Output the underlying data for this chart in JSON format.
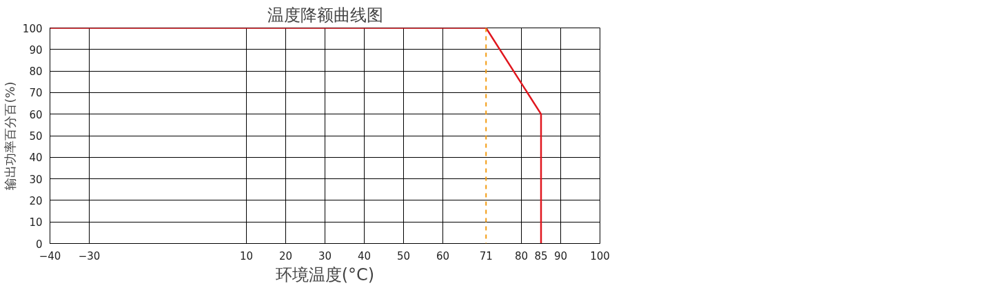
{
  "chart_data": {
    "type": "line",
    "title": "温度降额曲线图",
    "xlabel": "环境温度(°C)",
    "ylabel": "输出功率百分百(%)",
    "x": [
      -40,
      71,
      85,
      85
    ],
    "series": [
      {
        "color": "#e0161e",
        "values": [
          100,
          100,
          60,
          0
        ]
      }
    ],
    "xlim": [
      -40,
      100
    ],
    "xticks": [
      -40,
      -30,
      10,
      20,
      30,
      40,
      50,
      60,
      71,
      80,
      85,
      90,
      100
    ],
    "ylim": [
      0,
      100
    ],
    "yticks": [
      0,
      10,
      20,
      30,
      40,
      50,
      60,
      70,
      80,
      90,
      100
    ],
    "grid": true,
    "marker": "none",
    "line_style": "solid",
    "ref_lines": [
      {
        "axis": "x",
        "value": 71,
        "color": "#f39c12",
        "line_style": "dashed"
      }
    ]
  }
}
